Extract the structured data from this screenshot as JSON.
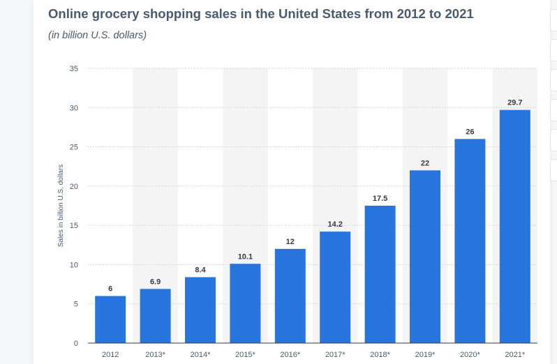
{
  "header": {
    "title": "Online grocery shopping sales in the United States from 2012 to 2021",
    "subtitle": "(in billion U.S. dollars)"
  },
  "colors": {
    "bar": "#2876dd",
    "stripe": "#f4f4f4",
    "grid": "#c9ced4",
    "text": "#4a5a6d"
  },
  "chart_data": {
    "type": "bar",
    "title": "Online grocery shopping sales in the United States from 2012 to 2021",
    "subtitle": "(in billion U.S. dollars)",
    "xlabel": "",
    "ylabel": "Sales in billion U.S. dollars",
    "categories": [
      "2012",
      "2013*",
      "2014*",
      "2015*",
      "2016*",
      "2017*",
      "2018*",
      "2019*",
      "2020*",
      "2021*"
    ],
    "values": [
      6,
      6.9,
      8.4,
      10.1,
      12,
      14.2,
      17.5,
      22,
      26,
      29.7
    ],
    "value_labels": [
      "6",
      "6.9",
      "8.4",
      "10.1",
      "12",
      "14.2",
      "17.5",
      "22",
      "26",
      "29.7"
    ],
    "ylim": [
      0,
      35
    ],
    "yticks": [
      0,
      5,
      10,
      15,
      20,
      25,
      30,
      35
    ],
    "grid": true,
    "legend": "none"
  }
}
